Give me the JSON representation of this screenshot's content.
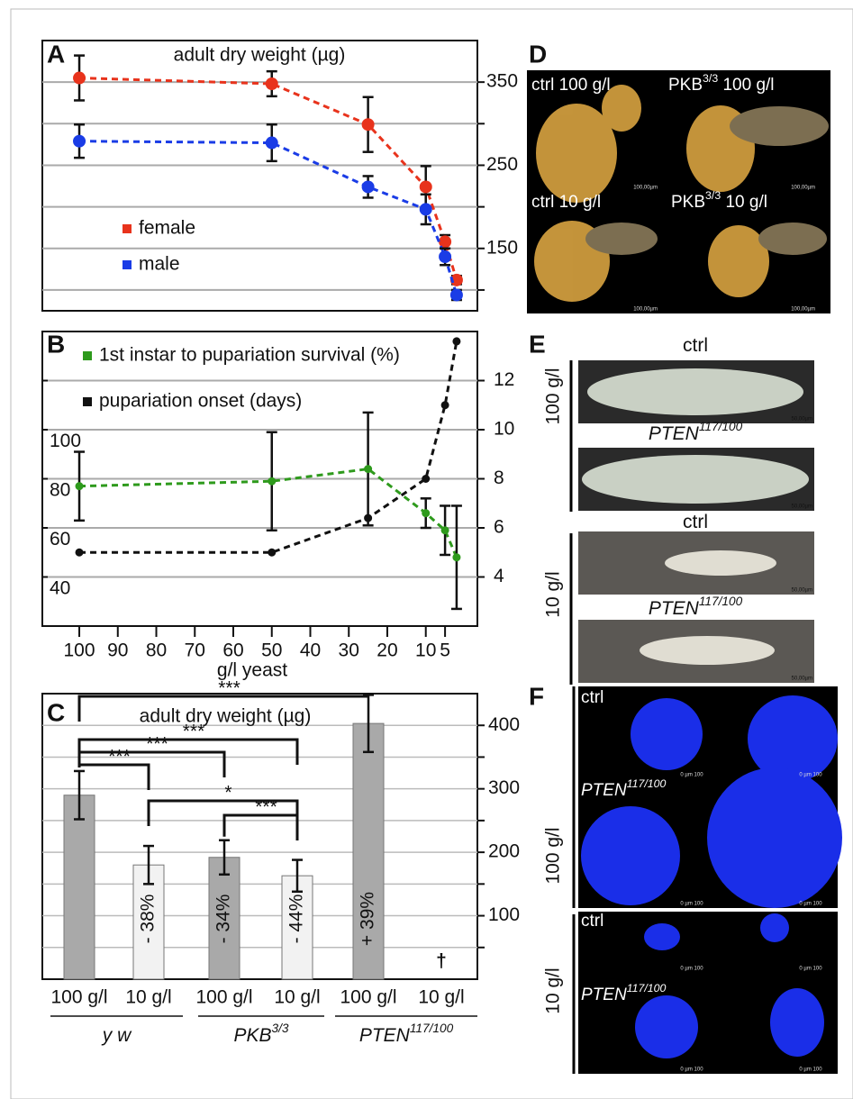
{
  "panel_letters": [
    "A",
    "B",
    "C",
    "D",
    "E",
    "F"
  ],
  "chart_data": [
    {
      "type": "line",
      "title": "adult dry weight (µg)",
      "line_style": "dashed",
      "x": [
        100,
        50,
        25,
        10,
        5,
        2
      ],
      "xlim": [
        109.6,
        -3.4
      ],
      "ylim": [
        75,
        400
      ],
      "yticks": [
        150,
        250,
        350
      ],
      "minor_yticks": [
        100,
        200,
        300
      ],
      "grid": true,
      "legend": "left",
      "series": [
        {
          "name": "female",
          "color": "#e8331c",
          "values": [
            355,
            348,
            299,
            224,
            158,
            112
          ],
          "errors": [
            27,
            15,
            33,
            25,
            8,
            5
          ]
        },
        {
          "name": "male",
          "color": "#1a3ce6",
          "values": [
            279,
            277,
            224,
            197,
            140,
            94
          ],
          "errors": [
            20,
            22,
            13,
            18,
            10,
            6
          ]
        }
      ]
    },
    {
      "type": "line",
      "line_style": "dashed",
      "xlabel": "g/l yeast",
      "x": [
        100,
        50,
        25,
        10,
        5,
        2
      ],
      "xlim": [
        109.6,
        -3.4
      ],
      "xticks": [
        100,
        90,
        80,
        70,
        60,
        50,
        40,
        30,
        20,
        10,
        5
      ],
      "ylim": [
        25,
        145
      ],
      "yticks": [
        40,
        60,
        80,
        100
      ],
      "y_tick_color": "#2e9a1c",
      "y2lim": [
        2,
        14
      ],
      "y2ticks": [
        4,
        6,
        8,
        10,
        12
      ],
      "grid": true,
      "legend": "upper left",
      "series": [
        {
          "name": "1st instar to pupariation survival (%)",
          "color": "#2e9a1c",
          "values": [
            82,
            84,
            89,
            71,
            64,
            53
          ],
          "errors": [
            14,
            20,
            23,
            6,
            10,
            21
          ]
        },
        {
          "name": "pupariation onset (days)",
          "color": "#111111",
          "axis": "y2",
          "values": [
            5,
            5,
            6.4,
            8,
            11,
            13.6
          ]
        }
      ]
    },
    {
      "type": "bar",
      "title": "adult dry weight (µg)",
      "categories": [
        "100 g/l",
        "10 g/l",
        "100 g/l",
        "10 g/l",
        "100 g/l",
        "10 g/l"
      ],
      "groups": [
        {
          "text": "y w"
        },
        {
          "text": "PKB",
          "sup": "3/3"
        },
        {
          "text": "PTEN",
          "sup": "117/100"
        }
      ],
      "values": [
        290,
        180,
        192,
        163,
        403,
        null
      ],
      "errors": [
        38,
        30,
        27,
        25,
        45,
        null
      ],
      "colors": [
        "#a9a9a9",
        "#f2f2f2",
        "#a9a9a9",
        "#f2f2f2",
        "#a9a9a9",
        "#f2f2f2"
      ],
      "bar_annotations": [
        null,
        "- 38%",
        "- 34%",
        "- 44%",
        "+ 39%",
        "†"
      ],
      "significance": [
        "***",
        "***",
        "***",
        "***",
        "*",
        "***"
      ],
      "ylim": [
        0,
        450
      ],
      "yticks": [
        100,
        200,
        300,
        400
      ],
      "minor_yticks": [
        50,
        150,
        250,
        350
      ],
      "grid": true
    }
  ],
  "photos": {
    "D": {
      "labels": [
        {
          "text": "ctrl 100 g/l"
        },
        {
          "text": "PKB",
          "sup": "3/3",
          "rest": " 100 g/l"
        },
        {
          "text": "ctrl 10 g/l"
        },
        {
          "text": "PKB",
          "sup": "3/3",
          "rest": " 10 g/l"
        }
      ],
      "scale_label": "100,00µm"
    },
    "E": {
      "labels": [
        {
          "text": "ctrl"
        },
        {
          "text": "PTEN",
          "sup": "117/100"
        },
        {
          "text": "ctrl"
        },
        {
          "text": "PTEN",
          "sup": "117/100"
        }
      ],
      "side_labels": [
        "100 g/l",
        "10 g/l"
      ],
      "scale_label": "50,00µm"
    },
    "F": {
      "labels": [
        {
          "text": "ctrl"
        },
        {
          "text": "PTEN",
          "sup": "117/100"
        },
        {
          "text": "ctrl"
        },
        {
          "text": "PTEN",
          "sup": "117/100"
        }
      ],
      "side_labels": [
        "100 g/l",
        "10 g/l"
      ],
      "scale_label": "0 µm 100"
    }
  }
}
